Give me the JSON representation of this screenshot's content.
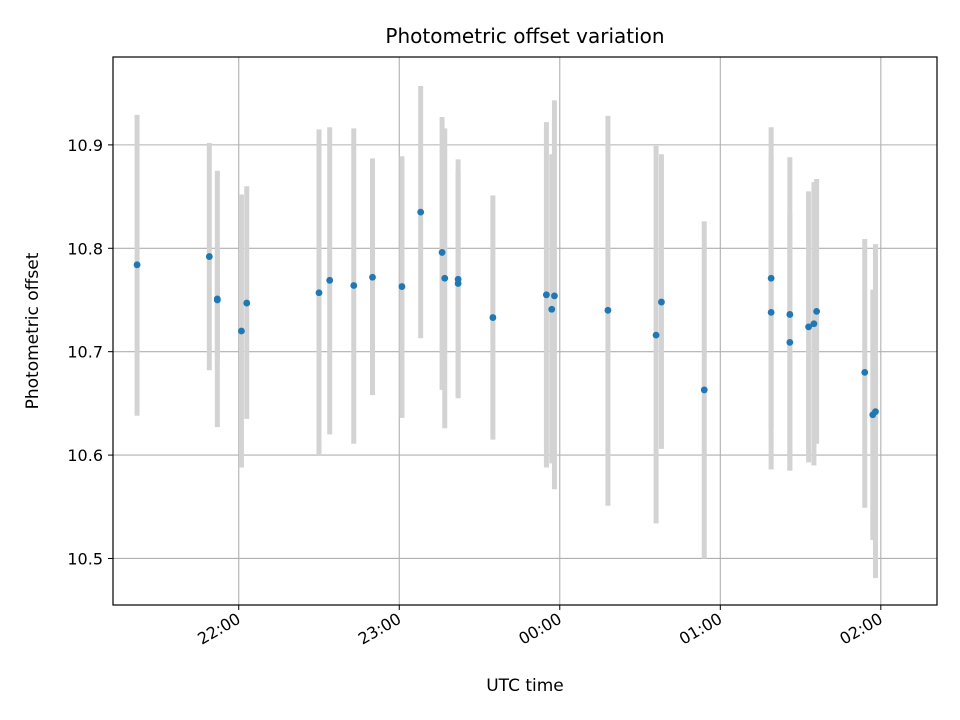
{
  "chart_data": {
    "type": "scatter",
    "title": "Photometric offset variation",
    "xlabel": "UTC time",
    "ylabel": "Photometric offset",
    "grid": true,
    "xlim": [
      "21:13",
      "02:21"
    ],
    "ylim": [
      10.455,
      10.985
    ],
    "x_ticks": [
      "22:00",
      "23:00",
      "00:00",
      "01:00",
      "02:00"
    ],
    "y_ticks": [
      10.5,
      10.6,
      10.7,
      10.8,
      10.9
    ],
    "y_tick_labels": [
      "10.5",
      "10.6",
      "10.7",
      "10.8",
      "10.9"
    ],
    "colors": {
      "marker": "#1f77b4",
      "errorbar": "#d3d3d3",
      "grid": "#b0b0b0"
    },
    "points": [
      {
        "t": "21:22",
        "y": 10.784,
        "lo": 10.638,
        "hi": 10.929
      },
      {
        "t": "21:49",
        "y": 10.792,
        "lo": 10.682,
        "hi": 10.902
      },
      {
        "t": "21:52",
        "y": 10.751,
        "lo": 10.627,
        "hi": 10.875
      },
      {
        "t": "21:52",
        "y": 10.75,
        "lo": 10.69,
        "hi": 10.8
      },
      {
        "t": "22:01",
        "y": 10.72,
        "lo": 10.588,
        "hi": 10.852
      },
      {
        "t": "22:03",
        "y": 10.747,
        "lo": 10.635,
        "hi": 10.86
      },
      {
        "t": "22:30",
        "y": 10.757,
        "lo": 10.6,
        "hi": 10.915
      },
      {
        "t": "22:34",
        "y": 10.769,
        "lo": 10.62,
        "hi": 10.917
      },
      {
        "t": "22:43",
        "y": 10.764,
        "lo": 10.611,
        "hi": 10.916
      },
      {
        "t": "22:50",
        "y": 10.772,
        "lo": 10.658,
        "hi": 10.887
      },
      {
        "t": "23:01",
        "y": 10.763,
        "lo": 10.636,
        "hi": 10.889
      },
      {
        "t": "23:08",
        "y": 10.835,
        "lo": 10.713,
        "hi": 10.957
      },
      {
        "t": "23:16",
        "y": 10.796,
        "lo": 10.663,
        "hi": 10.927
      },
      {
        "t": "23:17",
        "y": 10.771,
        "lo": 10.626,
        "hi": 10.916
      },
      {
        "t": "23:22",
        "y": 10.77,
        "lo": 10.655,
        "hi": 10.886
      },
      {
        "t": "23:22",
        "y": 10.766,
        "lo": 10.657,
        "hi": 10.874
      },
      {
        "t": "23:35",
        "y": 10.733,
        "lo": 10.615,
        "hi": 10.851
      },
      {
        "t": "23:55",
        "y": 10.755,
        "lo": 10.588,
        "hi": 10.922
      },
      {
        "t": "23:57",
        "y": 10.741,
        "lo": 10.592,
        "hi": 10.891
      },
      {
        "t": "23:58",
        "y": 10.754,
        "lo": 10.567,
        "hi": 10.943
      },
      {
        "t": "00:18",
        "y": 10.74,
        "lo": 10.551,
        "hi": 10.928
      },
      {
        "t": "00:36",
        "y": 10.716,
        "lo": 10.534,
        "hi": 10.899
      },
      {
        "t": "00:38",
        "y": 10.748,
        "lo": 10.606,
        "hi": 10.891
      },
      {
        "t": "00:54",
        "y": 10.663,
        "lo": 10.5,
        "hi": 10.826
      },
      {
        "t": "01:19",
        "y": 10.771,
        "lo": 10.625,
        "hi": 10.917
      },
      {
        "t": "01:19",
        "y": 10.738,
        "lo": 10.586,
        "hi": 10.889
      },
      {
        "t": "01:26",
        "y": 10.709,
        "lo": 10.585,
        "hi": 10.834
      },
      {
        "t": "01:26",
        "y": 10.736,
        "lo": 10.585,
        "hi": 10.888
      },
      {
        "t": "01:33",
        "y": 10.724,
        "lo": 10.593,
        "hi": 10.855
      },
      {
        "t": "01:35",
        "y": 10.727,
        "lo": 10.59,
        "hi": 10.864
      },
      {
        "t": "01:36",
        "y": 10.739,
        "lo": 10.611,
        "hi": 10.867
      },
      {
        "t": "01:54",
        "y": 10.68,
        "lo": 10.549,
        "hi": 10.809
      },
      {
        "t": "01:57",
        "y": 10.639,
        "lo": 10.518,
        "hi": 10.76
      },
      {
        "t": "01:58",
        "y": 10.642,
        "lo": 10.481,
        "hi": 10.804
      }
    ]
  }
}
